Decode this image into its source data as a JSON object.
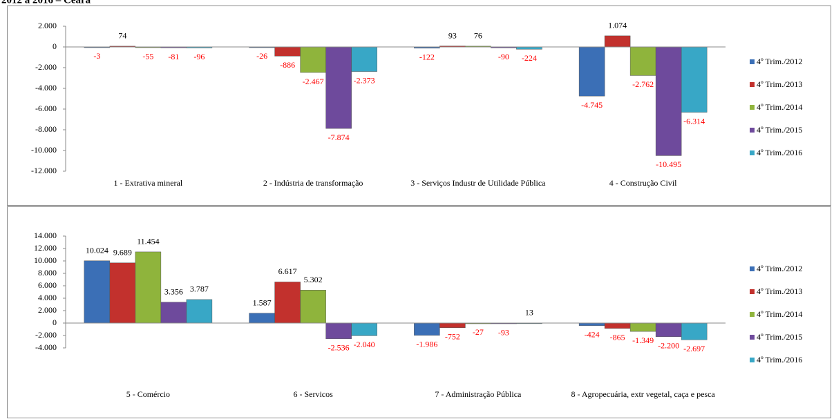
{
  "header": {
    "title": "2012 a 2016 – Ceará"
  },
  "chart_data": [
    {
      "type": "bar",
      "categories": [
        "1 - Extrativa mineral",
        "2 - Indústria de transformação",
        "3 - Serviços Industr de Utilidade Pública",
        "4 - Construção Civil"
      ],
      "series": [
        {
          "name": "4º Trim./2012",
          "color": "#3b6fb6",
          "values": [
            -3,
            -26,
            -122,
            -4745
          ],
          "value_labels": [
            "-3",
            "-26",
            "-122",
            "-4.745"
          ]
        },
        {
          "name": "4º Trim./2013",
          "color": "#c2312d",
          "values": [
            74,
            -886,
            93,
            1074
          ],
          "value_labels": [
            "74",
            "-886",
            "93",
            "1.074"
          ]
        },
        {
          "name": "4º Trim./2014",
          "color": "#8fb43c",
          "values": [
            -55,
            -2467,
            76,
            -2762
          ],
          "value_labels": [
            "-55",
            "-2.467",
            "76",
            "-2.762"
          ]
        },
        {
          "name": "4º Trim./2015",
          "color": "#6e4a9c",
          "values": [
            -81,
            -7874,
            -90,
            -10495
          ],
          "value_labels": [
            "-81",
            "-7.874",
            "-90",
            "-10.495"
          ]
        },
        {
          "name": "4º Trim./2016",
          "color": "#38a7c6",
          "values": [
            -96,
            -2373,
            -224,
            -6314
          ],
          "value_labels": [
            "-96",
            "-2.373",
            "-224",
            "-6.314"
          ]
        }
      ],
      "ylim": [
        -12000,
        2000
      ],
      "yticks": [
        {
          "value": 2000,
          "label": "2.000"
        },
        0,
        {
          "value": -2000,
          "label": "-2.000"
        },
        {
          "value": -4000,
          "label": "-4.000"
        },
        {
          "value": -6000,
          "label": "-6.000"
        },
        {
          "value": -8000,
          "label": "-8.000"
        },
        {
          "value": -10000,
          "label": "-10.000"
        },
        {
          "value": -12000,
          "label": "-12.000"
        }
      ],
      "negative_label_color": "#ff0000",
      "legend": "right"
    },
    {
      "type": "bar",
      "categories": [
        "5 - Comércio",
        "6 - Servicos",
        "7 - Administração Pública",
        "8 - Agropecuária, extr vegetal, caça e pesca"
      ],
      "series": [
        {
          "name": "4º Trim./2012",
          "color": "#3b6fb6",
          "values": [
            10024,
            1587,
            -1986,
            -424
          ],
          "value_labels": [
            "10.024",
            "1.587",
            "-1.986",
            "-424"
          ]
        },
        {
          "name": "4º Trim./2013",
          "color": "#c2312d",
          "values": [
            9689,
            6617,
            -752,
            -865
          ],
          "value_labels": [
            "9.689",
            "6.617",
            "-752",
            "-865"
          ]
        },
        {
          "name": "4º Trim./2014",
          "color": "#8fb43c",
          "values": [
            11454,
            5302,
            -27,
            -1349
          ],
          "value_labels": [
            "11.454",
            "5.302",
            "-27",
            "-1.349"
          ]
        },
        {
          "name": "4º Trim./2015",
          "color": "#6e4a9c",
          "values": [
            3356,
            -2536,
            -93,
            -2200
          ],
          "value_labels": [
            "3.356",
            "-2.536",
            "-93",
            "-2.200"
          ]
        },
        {
          "name": "4º Trim./2016",
          "color": "#38a7c6",
          "values": [
            3787,
            -2040,
            13,
            -2697
          ],
          "value_labels": [
            "3.787",
            "-2.040",
            "13",
            "-2.697"
          ]
        }
      ],
      "ylim": [
        -4000,
        14000
      ],
      "yticks": [
        {
          "value": 14000,
          "label": "14.000"
        },
        {
          "value": 12000,
          "label": "12.000"
        },
        {
          "value": 10000,
          "label": "10.000"
        },
        {
          "value": 8000,
          "label": "8.000"
        },
        {
          "value": 6000,
          "label": "6.000"
        },
        {
          "value": 4000,
          "label": "4.000"
        },
        {
          "value": 2000,
          "label": "2.000"
        },
        0,
        {
          "value": -2000,
          "label": "-2.000"
        },
        {
          "value": -4000,
          "label": "-4.000"
        }
      ],
      "negative_label_color": "#ff0000",
      "legend": "right"
    }
  ]
}
